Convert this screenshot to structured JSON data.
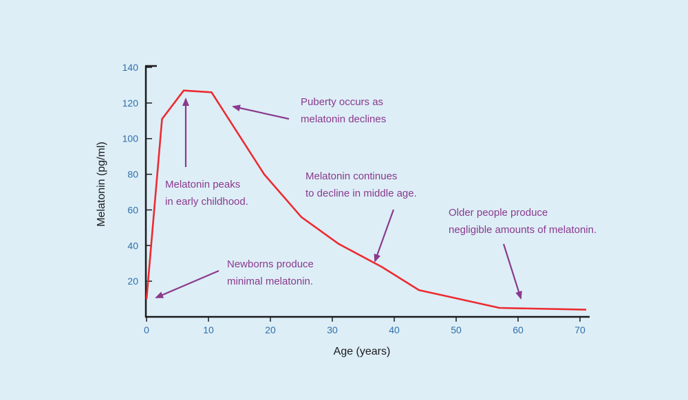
{
  "colors": {
    "background": "#ddeef7",
    "line": "#ec2b30",
    "annotation": "#8a3a8c",
    "axis": "#1a1a1a",
    "tick_label": "#2e6fa8"
  },
  "chart_data": {
    "type": "line",
    "title": "",
    "xlabel": "Age (years)",
    "ylabel": "Melatonin (pg/ml)",
    "xlim": [
      0,
      71
    ],
    "ylim": [
      0,
      140
    ],
    "x_ticks": [
      0,
      10,
      20,
      30,
      40,
      50,
      60,
      70
    ],
    "y_ticks": [
      20,
      40,
      60,
      80,
      100,
      120,
      140
    ],
    "grid": false,
    "legend": "none",
    "series": [
      {
        "x": [
          0,
          2.5,
          6,
          10.5,
          19,
          25,
          31,
          38,
          44,
          57,
          71
        ],
        "y": [
          10,
          111,
          127,
          126,
          80,
          56,
          41,
          28,
          15,
          5,
          4
        ]
      }
    ],
    "annotations": [
      {
        "id": "newborns",
        "lines": [
          "Newborns produce",
          "minimal melatonin."
        ]
      },
      {
        "id": "peak",
        "lines": [
          "Melatonin peaks",
          "in early childhood."
        ]
      },
      {
        "id": "puberty",
        "lines": [
          "Puberty occurs as",
          "melatonin declines"
        ]
      },
      {
        "id": "middle",
        "lines": [
          "Melatonin continues",
          "to decline in middle age."
        ]
      },
      {
        "id": "older",
        "lines": [
          "Older people produce",
          "negligible amounts of melatonin."
        ]
      }
    ]
  }
}
